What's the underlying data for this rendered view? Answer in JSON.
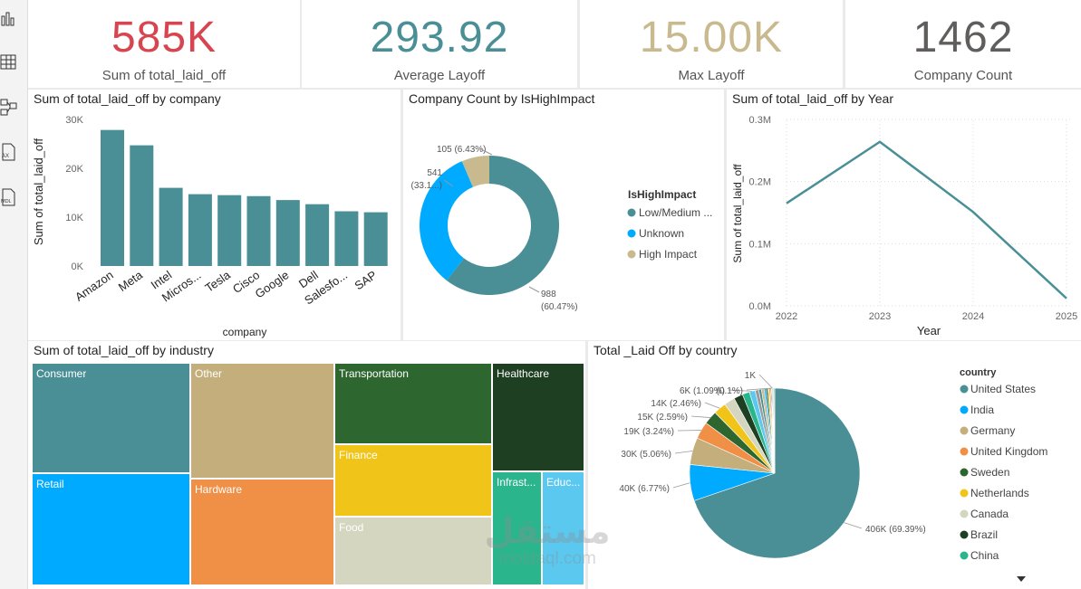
{
  "kpis": [
    {
      "value": "585K",
      "label": "Sum of total_laid_off",
      "color": "#d64550"
    },
    {
      "value": "293.92",
      "label": "Average Layoff",
      "color": "#4a8f95"
    },
    {
      "value": "15.00K",
      "label": "Max Layoff",
      "color": "#c8b98e"
    },
    {
      "value": "1462",
      "label": "Company Count",
      "color": "#605e5c"
    }
  ],
  "rail_icons": [
    "report-view-icon",
    "table-view-icon",
    "model-view-icon",
    "dax-query-icon",
    "tmdl-view-icon"
  ],
  "chart_data": [
    {
      "id": "company_bar",
      "type": "bar",
      "title": "Sum of total_laid_off by company",
      "xlabel": "company",
      "ylabel": "Sum of total_laid_off",
      "categories": [
        "Amazon",
        "Meta",
        "Intel",
        "Micros...",
        "Tesla",
        "Cisco",
        "Google",
        "Dell",
        "Salesfo...",
        "SAP"
      ],
      "values": [
        27840,
        24700,
        16000,
        14700,
        14500,
        14300,
        13500,
        12650,
        11200,
        11000
      ],
      "ylim": [
        0,
        30000
      ],
      "yticks": [
        0,
        10000,
        20000,
        30000
      ],
      "ytick_labels": [
        "0K",
        "10K",
        "20K",
        "30K"
      ],
      "color": "#4a8f95"
    },
    {
      "id": "impact_donut",
      "type": "pie",
      "donut": true,
      "title": "Company Count by IsHighImpact",
      "legend_title": "IsHighImpact",
      "slices": [
        {
          "name": "Low/Medium ...",
          "value": 988,
          "label": "988",
          "pct": "(60.47%)",
          "color": "#4a8f95"
        },
        {
          "name": "Unknown",
          "value": 541,
          "label": "541",
          "pct": "(33.1...)",
          "color": "#00aaff"
        },
        {
          "name": "High Impact",
          "value": 105,
          "label": "105 (6.43%)",
          "pct": "",
          "color": "#c8b98e"
        }
      ]
    },
    {
      "id": "year_line",
      "type": "line",
      "title": "Sum of total_laid_off by Year",
      "xlabel": "Year",
      "ylabel": "Sum of total_laid_off",
      "x": [
        "2022",
        "2023",
        "2024",
        "2025"
      ],
      "values": [
        165000,
        264000,
        151000,
        12000
      ],
      "ylim": [
        0,
        300000
      ],
      "yticks": [
        0,
        100000,
        200000,
        300000
      ],
      "ytick_labels": [
        "0.0M",
        "0.1M",
        "0.2M",
        "0.3M"
      ],
      "color": "#4a8f95"
    },
    {
      "id": "industry_treemap",
      "type": "treemap",
      "title": "Sum of total_laid_off by industry",
      "items": [
        {
          "name": "Consumer",
          "color": "#4a8f95"
        },
        {
          "name": "Retail",
          "color": "#00aaff"
        },
        {
          "name": "Other",
          "color": "#c4ae7c"
        },
        {
          "name": "Hardware",
          "color": "#f08f46"
        },
        {
          "name": "Transportation",
          "color": "#2e6630"
        },
        {
          "name": "Finance",
          "color": "#f0c419"
        },
        {
          "name": "Food",
          "color": "#d5d6c0"
        },
        {
          "name": "Healthcare",
          "color": "#1f3f22"
        },
        {
          "name": "Infrast...",
          "color": "#2bb58c"
        },
        {
          "name": "Educ...",
          "color": "#5bc8f0"
        }
      ]
    },
    {
      "id": "country_pie",
      "type": "pie",
      "title": "Total _Laid Off by country",
      "legend_title": "country",
      "slices": [
        {
          "name": "United States",
          "value": 406,
          "label": "406K (69.39%)",
          "color": "#4a8f95"
        },
        {
          "name": "India",
          "value": 40,
          "label": "40K (6.77%)",
          "color": "#00aaff"
        },
        {
          "name": "Germany",
          "value": 30,
          "label": "30K (5.06%)",
          "color": "#c4ae7c"
        },
        {
          "name": "United Kingdom",
          "value": 19,
          "label": "19K (3.24%)",
          "color": "#f08f46"
        },
        {
          "name": "Sweden",
          "value": 15,
          "label": "15K (2.59%)",
          "color": "#2e6630"
        },
        {
          "name": "Netherlands",
          "value": 14,
          "label": "14K (2.46%)",
          "color": "#f0c419"
        },
        {
          "name": "Canada",
          "value": 12,
          "label": "",
          "color": "#d5d6c0"
        },
        {
          "name": "Brazil",
          "value": 10,
          "label": "",
          "color": "#1f3f22"
        },
        {
          "name": "China",
          "value": 8,
          "label": "",
          "color": "#2bb58c"
        },
        {
          "name": "",
          "value": 6.4,
          "label": "6K (1.09%)",
          "color": "#5bc8f0"
        },
        {
          "name": "",
          "value": 4,
          "label": "",
          "color": "#999999"
        },
        {
          "name": "",
          "value": 3,
          "label": "",
          "color": "#4a8f95"
        },
        {
          "name": "",
          "value": 3,
          "label": "",
          "color": "#c8b98e"
        },
        {
          "name": "",
          "value": 2,
          "label": "",
          "color": "#00aaff"
        },
        {
          "name": "",
          "value": 2,
          "label": "",
          "color": "#2e6630"
        },
        {
          "name": "",
          "value": 1.5,
          "label": "",
          "color": "#f0c419"
        },
        {
          "name": "",
          "value": 1.5,
          "label": "",
          "color": "#f08f46"
        },
        {
          "name": "",
          "value": 1,
          "label": "",
          "color": "#1f3f22"
        },
        {
          "name": "",
          "value": 0.6,
          "label": "(0.1%)",
          "color": "#5bc8f0"
        },
        {
          "name": "",
          "value": 1,
          "label": "1K",
          "color": "#2bb58c"
        },
        {
          "name": "",
          "value": 1,
          "label": "",
          "color": "#c4ae7c"
        },
        {
          "name": "",
          "value": 1,
          "label": "",
          "color": "#4a8f95"
        }
      ]
    }
  ],
  "watermark": {
    "brand": "مستقل",
    "site": "mostaql.com"
  }
}
